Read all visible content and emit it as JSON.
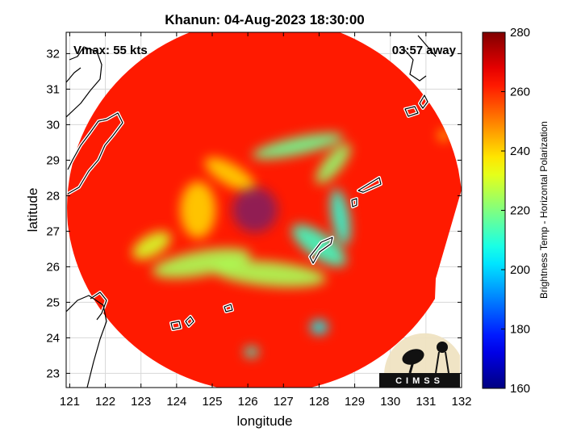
{
  "chart_data": {
    "type": "heatmap",
    "title": "Khanun: 04-Aug-2023 18:30:00",
    "xlabel": "longitude",
    "ylabel": "latitude",
    "xlim": [
      120.9,
      132
    ],
    "ylim": [
      22.6,
      32.6
    ],
    "xticks": [
      121,
      122,
      123,
      124,
      125,
      126,
      127,
      128,
      129,
      130,
      131,
      132
    ],
    "yticks": [
      23,
      24,
      25,
      26,
      27,
      28,
      29,
      30,
      31,
      32
    ],
    "grid": true,
    "annotations": {
      "left": "Vmax: 55 kts",
      "right": "03:57 away"
    },
    "storm_center": {
      "lon": 126.2,
      "lat": 27.6
    },
    "colorbar": {
      "label": "Brightness Temp - Horizontal Polarization",
      "min": 160,
      "max": 280,
      "ticks": [
        160,
        180,
        200,
        220,
        240,
        260,
        280
      ],
      "colormap": "jet"
    },
    "background_value": 262,
    "features": [
      {
        "kind": "band",
        "lon": 127.4,
        "lat": 29.4,
        "rx": 1.3,
        "ry": 0.25,
        "rot": 12,
        "value": 218
      },
      {
        "kind": "band",
        "lon": 128.4,
        "lat": 28.9,
        "rx": 0.7,
        "ry": 0.25,
        "rot": 50,
        "value": 222
      },
      {
        "kind": "band",
        "lon": 128.6,
        "lat": 27.4,
        "rx": 0.8,
        "ry": 0.25,
        "rot": -80,
        "value": 210
      },
      {
        "kind": "band",
        "lon": 128.0,
        "lat": 26.6,
        "rx": 0.9,
        "ry": 0.35,
        "rot": -35,
        "value": 212
      },
      {
        "kind": "band",
        "lon": 126.6,
        "lat": 25.8,
        "rx": 1.6,
        "ry": 0.35,
        "rot": -5,
        "value": 225
      },
      {
        "kind": "band",
        "lon": 124.7,
        "lat": 26.1,
        "rx": 1.4,
        "ry": 0.35,
        "rot": 10,
        "value": 225
      },
      {
        "kind": "band",
        "lon": 123.3,
        "lat": 26.6,
        "rx": 0.6,
        "ry": 0.3,
        "rot": 30,
        "value": 230
      },
      {
        "kind": "band",
        "lon": 124.6,
        "lat": 27.6,
        "rx": 0.5,
        "ry": 0.8,
        "rot": 0,
        "value": 240
      },
      {
        "kind": "band",
        "lon": 125.5,
        "lat": 28.6,
        "rx": 0.8,
        "ry": 0.3,
        "rot": -30,
        "value": 240
      },
      {
        "kind": "spot",
        "lon": 128.0,
        "lat": 24.3,
        "rx": 0.25,
        "ry": 0.2,
        "rot": 0,
        "value": 205
      },
      {
        "kind": "spot",
        "lon": 126.1,
        "lat": 23.6,
        "rx": 0.2,
        "ry": 0.15,
        "rot": 0,
        "value": 210
      },
      {
        "kind": "spot",
        "lon": 131.5,
        "lat": 29.7,
        "rx": 0.15,
        "ry": 0.15,
        "rot": 0,
        "value": 240
      }
    ]
  },
  "logo": {
    "text": "CIMSS"
  }
}
